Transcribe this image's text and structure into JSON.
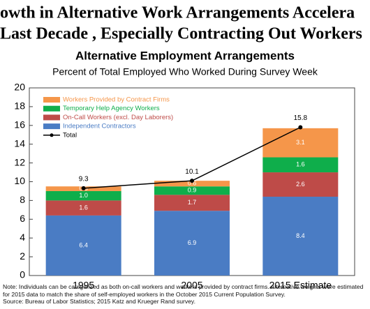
{
  "header": [
    "owth in Alternative  Work Arrangements Accelera",
    "Last Decade , Especially Contracting Out Workers"
  ],
  "chart_data": {
    "type": "bar",
    "stacked": true,
    "title": "Alternative Employment Arrangements",
    "subtitle": "Percent of Total Employed Who Worked During Survey Week",
    "categories": [
      "1995",
      "2005",
      "2015 Estimate"
    ],
    "series": [
      {
        "name": "Independent Contractors",
        "color": "#4a7cc4",
        "values": [
          6.4,
          6.9,
          8.4
        ]
      },
      {
        "name": "On-Call Workers (excl. Day Laborers)",
        "color": "#be4b48",
        "values": [
          1.6,
          1.7,
          2.6
        ]
      },
      {
        "name": "Temporary Help Agency Workers",
        "color": "#0fae4b",
        "values": [
          1.0,
          0.9,
          1.6
        ],
        "value_labels": [
          "1.0",
          "0.9",
          "1.6"
        ]
      },
      {
        "name": "Workers Provided by Contract Firms",
        "color": "#f5964a",
        "values": [
          0.5,
          0.6,
          3.1
        ]
      }
    ],
    "line": {
      "name": "Total",
      "color": "#000000",
      "values": [
        9.3,
        10.1,
        15.8
      ]
    },
    "ylim": [
      0,
      20
    ],
    "yticks": [
      0,
      2,
      4,
      6,
      8,
      10,
      12,
      14,
      16,
      18,
      20
    ],
    "legend": "upper-left",
    "note": "Note: Individuals can be categorized as both on-call workers and workers provided by contract firms. Alternative weights were estimated for 2015 data to match the share of self-employed workers in the October 2015 Current Population Survey.",
    "source": "Source: Bureau of Labor Statistics; 2015 Katz and Krueger Rand survey."
  }
}
